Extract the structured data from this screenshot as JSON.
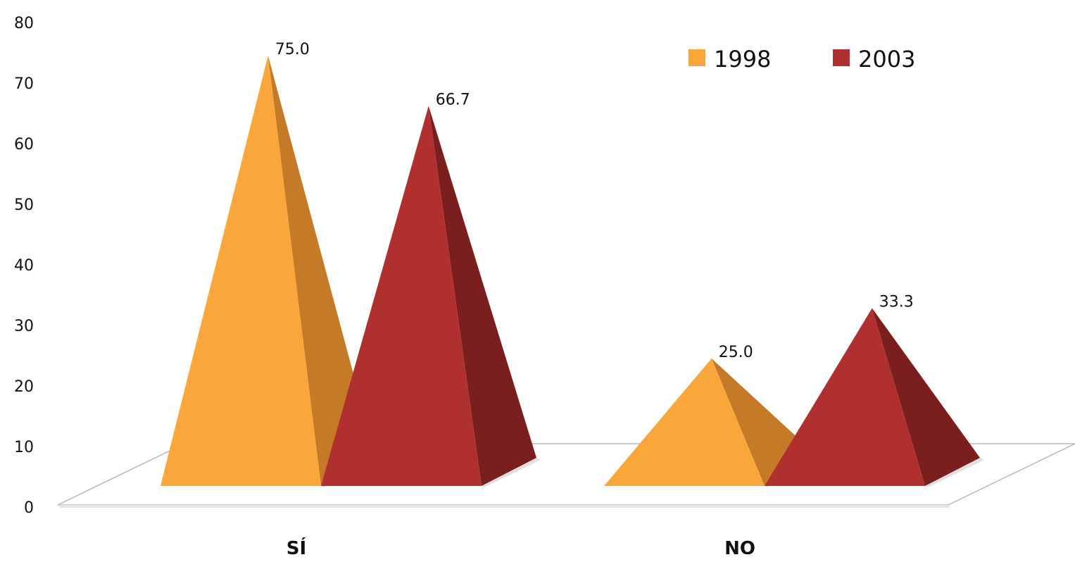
{
  "chart_data": {
    "type": "bar",
    "style": "3d-pyramid",
    "categories": [
      "SÍ",
      "NO"
    ],
    "series": [
      {
        "name": "1998",
        "values": [
          75.0,
          25.0
        ],
        "value_labels": [
          "75.0",
          "25.0"
        ],
        "color": "#F9A63A",
        "shade": "#C57A28"
      },
      {
        "name": "2003",
        "values": [
          66.7,
          33.3
        ],
        "value_labels": [
          "66.7",
          "33.3"
        ],
        "color": "#B03030",
        "shade": "#7A1E1E"
      }
    ],
    "y_ticks": [
      "0",
      "10",
      "20",
      "30",
      "40",
      "50",
      "60",
      "70",
      "80"
    ],
    "ylim": [
      0,
      80
    ],
    "legend_placement": "top-right",
    "grid": false
  }
}
